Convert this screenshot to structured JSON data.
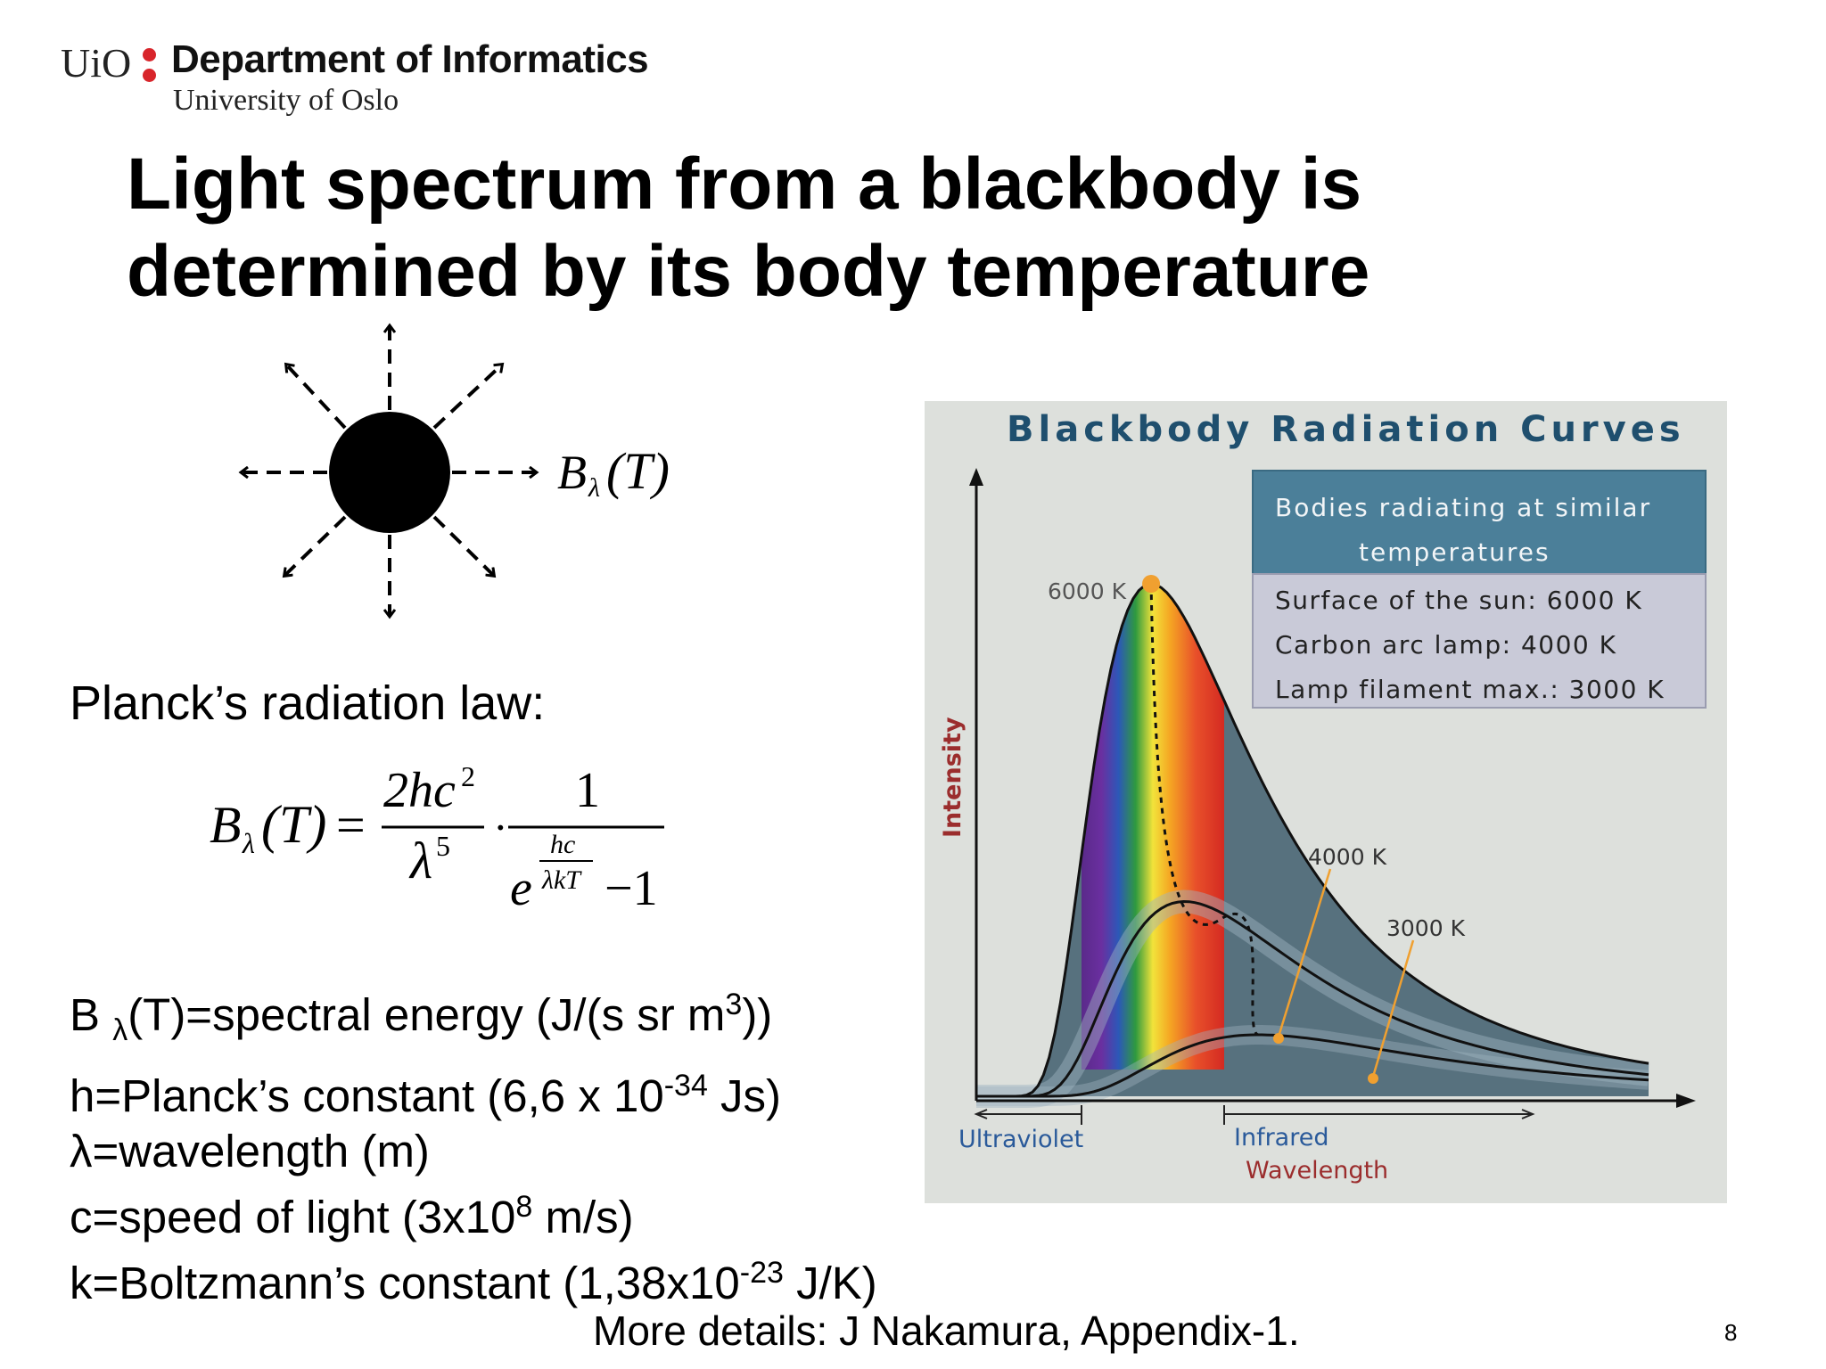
{
  "header": {
    "logo_text": "UiO",
    "department": "Department of Informatics",
    "university": "University of Oslo"
  },
  "slide": {
    "title_line1": "Light spectrum from a blackbody is",
    "title_line2": "determined by its body temperature",
    "planck_label": "Planck’s radiation law:",
    "formula": {
      "lhs_B": "B",
      "lhs_sub": "λ",
      "lhs_T": "(T)",
      "equals": "=",
      "num1": "2hc",
      "num1_exp": "2",
      "den1": "λ",
      "den1_exp": "5",
      "dot": "·",
      "num2": "1",
      "den2_e": "e",
      "den2_exp_num": "hc",
      "den2_exp_den": "λkT",
      "den2_minus": "−1"
    },
    "diagram_label_B": "B",
    "diagram_label_sub": "λ",
    "diagram_label_T": "(T)",
    "definitions": [
      {
        "pre": "B ",
        "sub": "λ",
        "post": "(T)=spectral energy (J/(s sr m",
        "sup": "3",
        "end": "))"
      },
      {
        "pre": "h=Planck’s constant (6,6 x 10",
        "sup": "-34",
        "end": " Js)"
      },
      {
        "pre": "λ=wavelength (m)"
      },
      {
        "pre": "c=speed of light (3x10",
        "sup": "8",
        "end": " m/s)"
      },
      {
        "pre": "k=Boltzmann’s constant (1,38x10",
        "sup": "-23",
        "end": " J/K)"
      }
    ],
    "footer": "More details: J Nakamura, Appendix-1.",
    "page_number": "8"
  },
  "chart_data": {
    "type": "line",
    "title": "Blackbody Radiation Curves",
    "xlabel": "Wavelength",
    "ylabel": "Intensity",
    "region_labels": [
      "Ultraviolet",
      "Infrared"
    ],
    "legend_title": "Bodies radiating at similar temperatures",
    "legend_items": [
      "Surface of the sun: 6000 K",
      "Carbon arc lamp: 4000 K",
      "Lamp filament max.: 3000 K"
    ],
    "series": [
      {
        "name": "6000 K",
        "relative_peak": 1.0,
        "peak_position": 0.26
      },
      {
        "name": "4000 K",
        "relative_peak": 0.38,
        "peak_position": 0.31
      },
      {
        "name": "3000 K",
        "relative_peak": 0.12,
        "peak_position": 0.42
      }
    ],
    "colors": {
      "title": "#1f4f6e",
      "legend_header": "#4b7f99",
      "legend_body": "#c9cad8",
      "curve_fill": "#4f6a78",
      "ylabel": "#9b2d2d",
      "region_label": "#2a5a9a",
      "marker": "#f0a030"
    }
  }
}
